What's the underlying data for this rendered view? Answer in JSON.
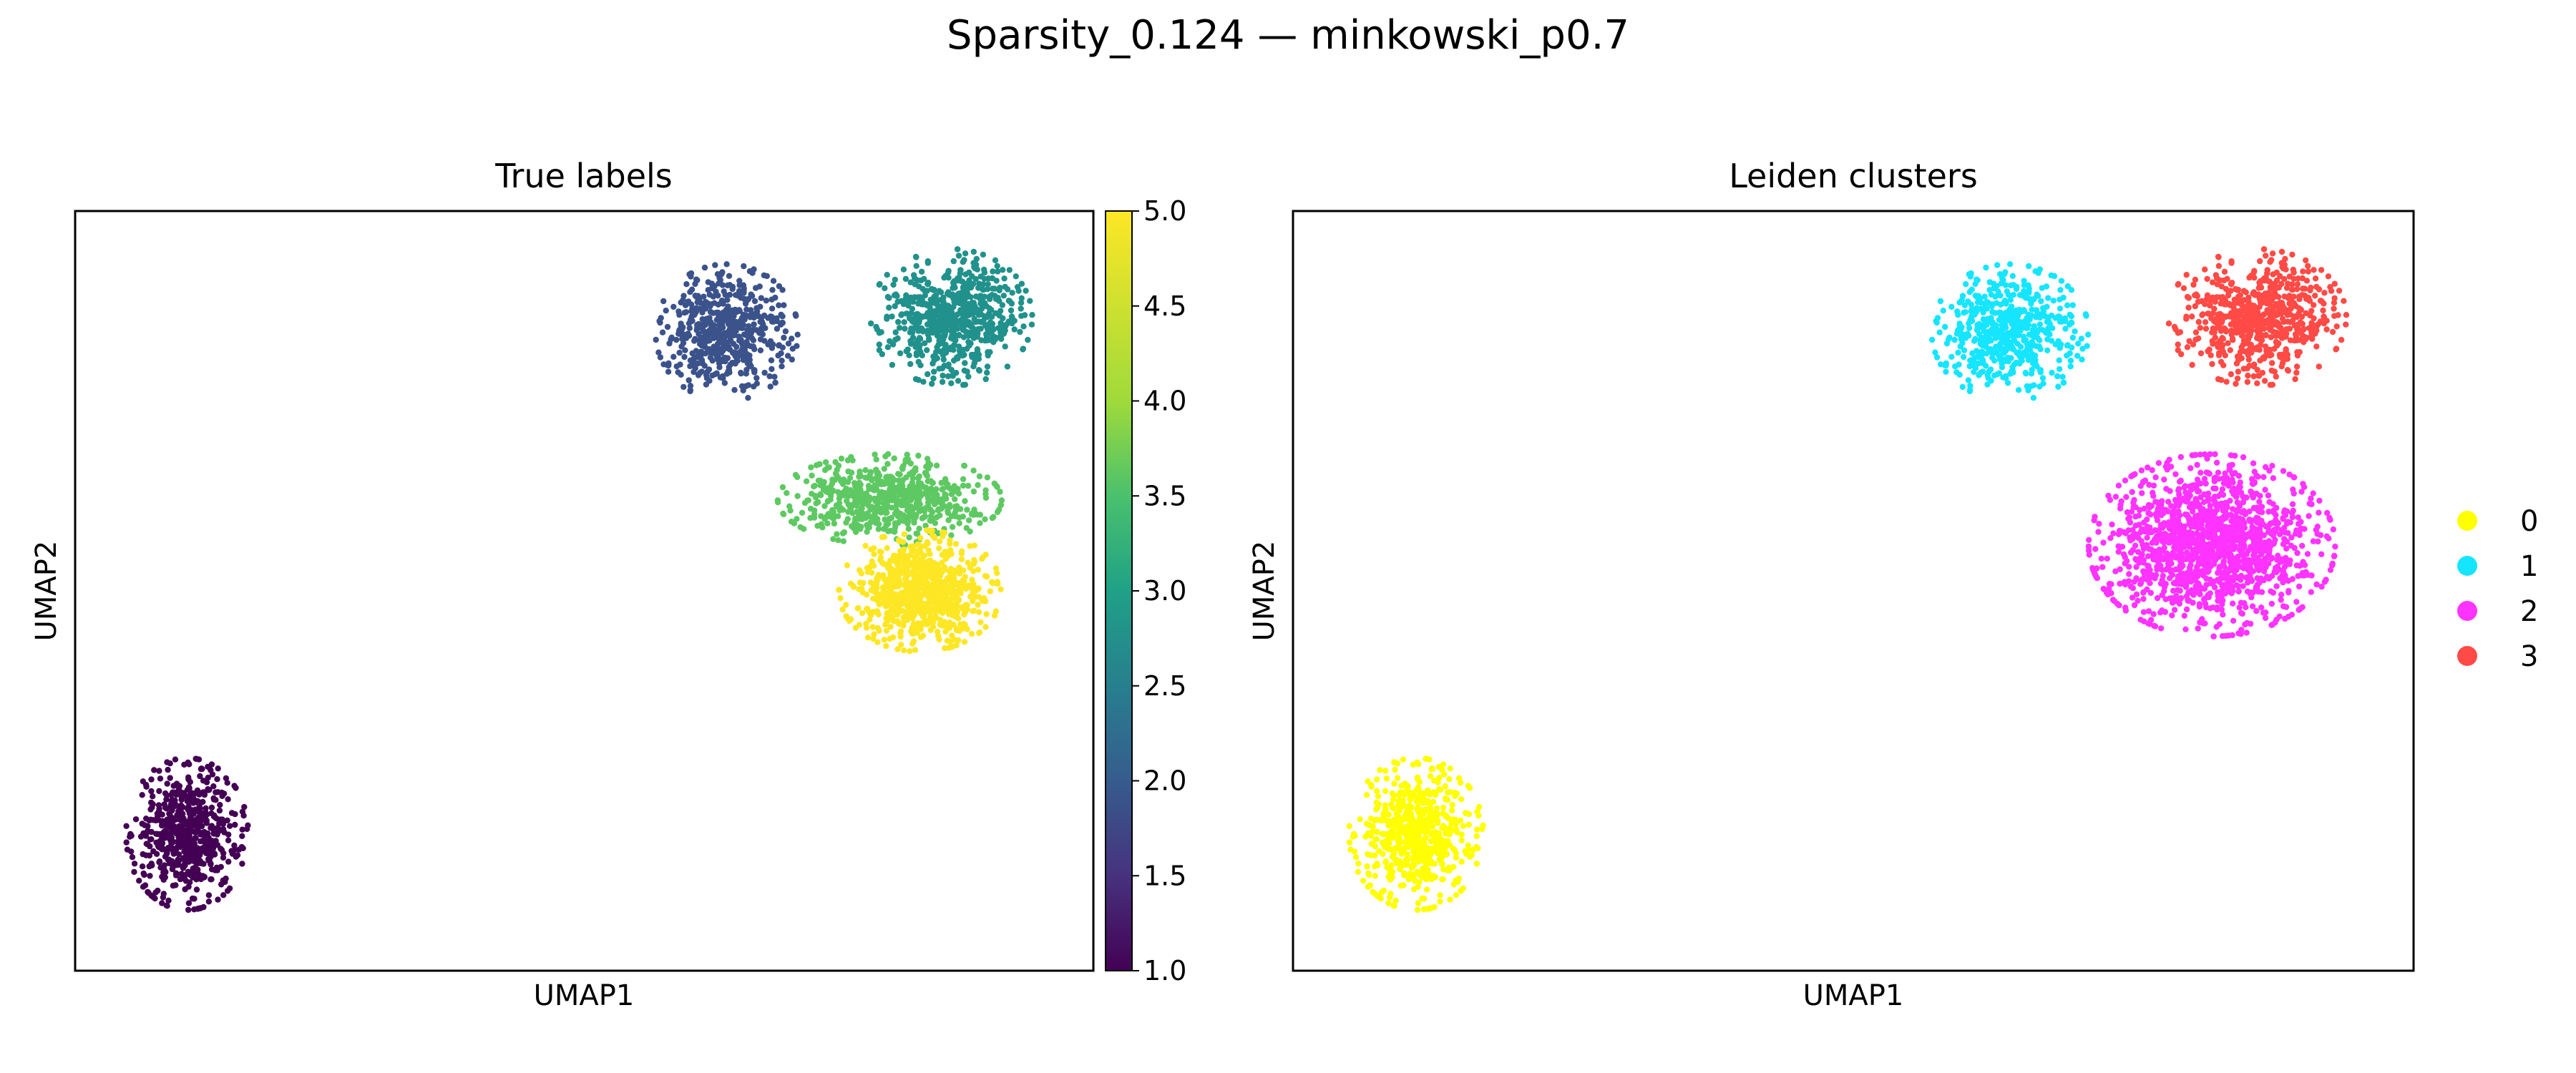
{
  "figure": {
    "title": "Sparsity_0.124 — minkowski_p0.7"
  },
  "chart_data": [
    {
      "type": "scatter",
      "title": "True labels",
      "xlabel": "UMAP1",
      "ylabel": "UMAP2",
      "xlim": [
        0,
        100
      ],
      "ylim": [
        0,
        100
      ],
      "x_ticks_shown": false,
      "y_ticks_shown": false,
      "color_by": "true_label",
      "colorbar": {
        "colormap": "viridis",
        "range": [
          1.0,
          5.0
        ],
        "ticks": [
          "1.0",
          "1.5",
          "2.0",
          "2.5",
          "3.0",
          "3.5",
          "4.0",
          "4.5",
          "5.0"
        ]
      },
      "clusters": [
        {
          "label": 1,
          "color": "#440154",
          "center": [
            11,
            18
          ],
          "spread": [
            6,
            10
          ],
          "count": 600
        },
        {
          "label": 2,
          "color": "#3b528b",
          "center": [
            64,
            84
          ],
          "spread": [
            7,
            9
          ],
          "count": 550
        },
        {
          "label": 3,
          "color": "#21918c",
          "center": [
            86,
            86
          ],
          "spread": [
            8,
            9
          ],
          "count": 650
        },
        {
          "label": 4,
          "color": "#5ec962",
          "center": [
            80,
            62
          ],
          "spread": [
            11,
            6
          ],
          "count": 650
        },
        {
          "label": 5,
          "color": "#fde725",
          "center": [
            83,
            50
          ],
          "spread": [
            8,
            8
          ],
          "count": 800
        }
      ]
    },
    {
      "type": "scatter",
      "title": "Leiden clusters",
      "xlabel": "UMAP1",
      "ylabel": "UMAP2",
      "xlim": [
        0,
        100
      ],
      "ylim": [
        0,
        100
      ],
      "x_ticks_shown": false,
      "y_ticks_shown": false,
      "color_by": "leiden",
      "legend": {
        "placement": "right",
        "entries": [
          {
            "label": "0",
            "color": "#ffff00"
          },
          {
            "label": "1",
            "color": "#16e5ff"
          },
          {
            "label": "2",
            "color": "#ff33ff"
          },
          {
            "label": "3",
            "color": "#ff4a46"
          }
        ]
      },
      "clusters": [
        {
          "label": "0",
          "color": "#ffff00",
          "center": [
            11,
            18
          ],
          "spread": [
            6,
            10
          ],
          "count": 600
        },
        {
          "label": "1",
          "color": "#16e5ff",
          "center": [
            64,
            84
          ],
          "spread": [
            7,
            9
          ],
          "count": 550
        },
        {
          "label": "3",
          "color": "#ff4a46",
          "center": [
            86,
            86
          ],
          "spread": [
            8,
            9
          ],
          "count": 650
        },
        {
          "label": "2",
          "color": "#ff33ff",
          "center": [
            82,
            56
          ],
          "spread": [
            11,
            12
          ],
          "count": 1450
        }
      ]
    }
  ]
}
